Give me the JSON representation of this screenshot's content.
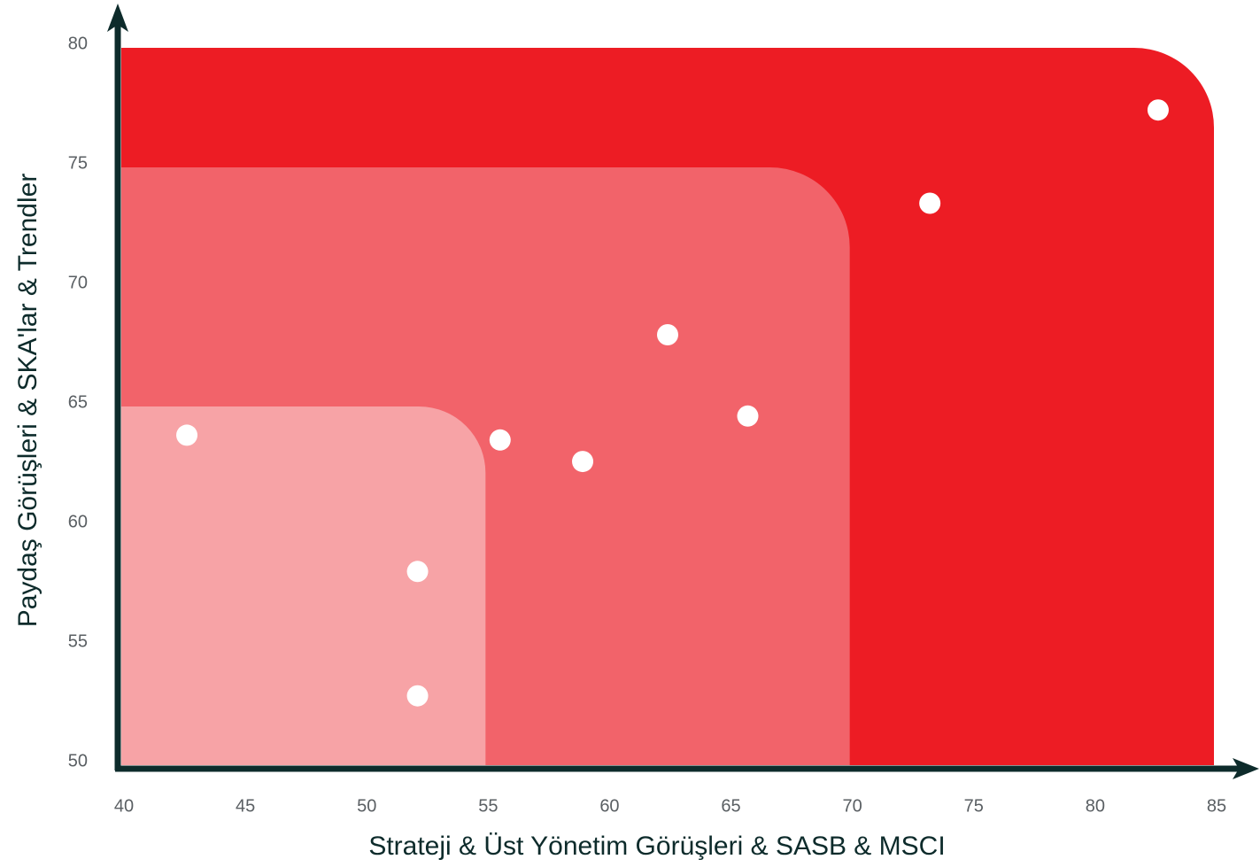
{
  "chart_data": {
    "type": "scatter",
    "x_label": "Strateji & Üst Yönetim Görüşleri & SASB & MSCI",
    "y_label": "Paydaş Görüşleri & SKA'lar & Trendler",
    "xlim": [
      40,
      85
    ],
    "ylim": [
      50,
      80
    ],
    "xticks": [
      40,
      45,
      50,
      55,
      60,
      65,
      70,
      75,
      80,
      85
    ],
    "yticks": [
      50,
      55,
      60,
      65,
      70,
      75,
      80
    ],
    "zones": [
      {
        "x": [
          40,
          85
        ],
        "y": [
          50,
          80
        ],
        "color": "#ed1c24"
      },
      {
        "x": [
          40,
          70
        ],
        "y": [
          50,
          75
        ],
        "color": "#f2636a"
      },
      {
        "x": [
          40,
          55
        ],
        "y": [
          50,
          65
        ],
        "color": "#f7a3a6"
      }
    ],
    "series": [
      {
        "color": "#ffffff",
        "x": [
          42.7,
          52.2,
          52.2,
          55.6,
          59.0,
          62.5,
          65.8,
          73.3,
          82.7
        ],
        "values": [
          63.8,
          58.1,
          52.9,
          63.6,
          62.7,
          68.0,
          64.6,
          73.5,
          77.4
        ]
      }
    ]
  }
}
